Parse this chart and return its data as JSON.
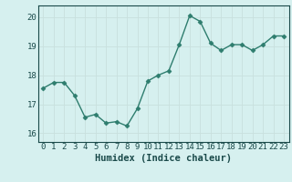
{
  "x": [
    0,
    1,
    2,
    3,
    4,
    5,
    6,
    7,
    8,
    9,
    10,
    11,
    12,
    13,
    14,
    15,
    16,
    17,
    18,
    19,
    20,
    21,
    22,
    23
  ],
  "y": [
    17.55,
    17.75,
    17.75,
    17.3,
    16.55,
    16.65,
    16.35,
    16.4,
    16.25,
    16.85,
    17.8,
    18.0,
    18.15,
    19.05,
    20.05,
    19.85,
    19.1,
    18.85,
    19.05,
    19.05,
    18.85,
    19.05,
    19.35,
    19.35
  ],
  "line_color": "#2e7d6e",
  "marker": "D",
  "marker_size": 2.5,
  "bg_color": "#d6f0ef",
  "grid_color": "#c8e0de",
  "xlabel": "Humidex (Indice chaleur)",
  "ylim": [
    15.7,
    20.4
  ],
  "xlim": [
    -0.5,
    23.5
  ],
  "yticks": [
    16,
    17,
    18,
    19,
    20
  ],
  "xticks": [
    0,
    1,
    2,
    3,
    4,
    5,
    6,
    7,
    8,
    9,
    10,
    11,
    12,
    13,
    14,
    15,
    16,
    17,
    18,
    19,
    20,
    21,
    22,
    23
  ],
  "tick_label_fontsize": 6.5,
  "xlabel_fontsize": 7.5,
  "tick_color": "#1a4a4a",
  "spine_color": "#1a4a4a",
  "line_width": 1.0
}
